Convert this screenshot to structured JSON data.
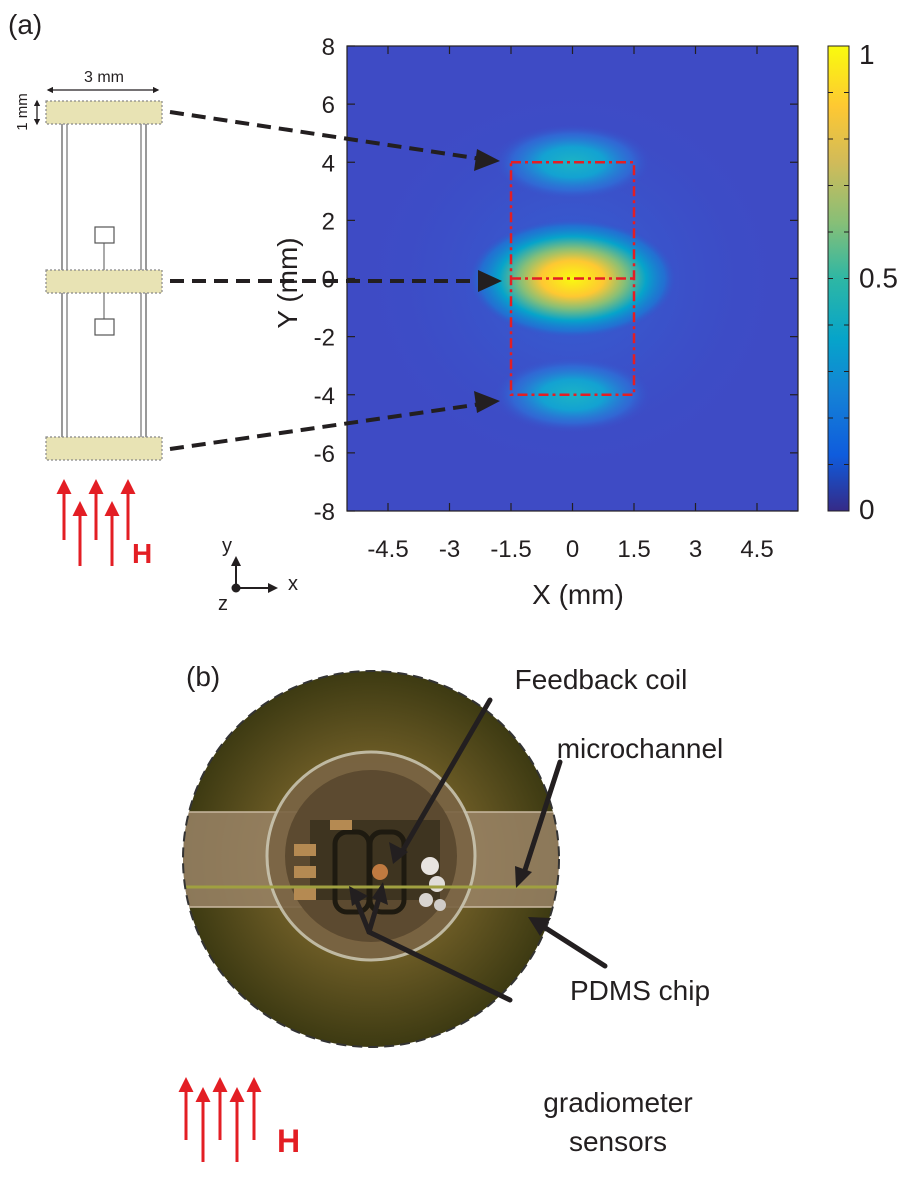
{
  "panel_a": {
    "label": "(a)",
    "sensor_width_label": "3 mm",
    "sensor_height_label": "1 mm",
    "field_label": "H",
    "axes_x": "x",
    "axes_y": "y",
    "axes_z": "z"
  },
  "panel_b": {
    "label": "(b)",
    "feedback_coil": "Feedback coil",
    "microchannel": "microchannel",
    "pdms_chip": "PDMS chip",
    "gradiometer_line1": "gradiometer",
    "gradiometer_line2": "sensors",
    "field_label": "H"
  },
  "colors": {
    "red": "#e31e24",
    "arrow": "#231f20",
    "sensor_fill": "#e8e3b4"
  },
  "chart_data": {
    "type": "heatmap",
    "xlabel": "X (mm)",
    "ylabel": "Y (mm)",
    "xlim": [
      -5.5,
      5.5
    ],
    "ylim": [
      -8,
      8
    ],
    "x_ticks": [
      "-4.5",
      "-3",
      "-1.5",
      "0",
      "1.5",
      "3",
      "4.5"
    ],
    "x_tick_values": [
      -4.5,
      -3,
      -1.5,
      0,
      1.5,
      3,
      4.5
    ],
    "y_ticks": [
      "8",
      "6",
      "4",
      "2",
      "0",
      "-2",
      "-4",
      "-6",
      "-8"
    ],
    "y_tick_values": [
      8,
      6,
      4,
      2,
      0,
      -2,
      -4,
      -6,
      -8
    ],
    "colorbar": {
      "min": 0,
      "max": 1,
      "tick_labels": [
        "1",
        "0.5",
        "0"
      ],
      "tick_values": [
        1,
        0.5,
        0
      ],
      "colormap": "parula"
    },
    "hotspots": [
      {
        "x": 0,
        "y": 0,
        "value": 1.0
      },
      {
        "x": 0,
        "y": 4,
        "value": 0.45
      },
      {
        "x": 0,
        "y": -4,
        "value": 0.45
      }
    ],
    "sensor_region": {
      "x": [
        -1.5,
        1.5
      ],
      "y": [
        -4,
        4
      ],
      "divider_y": 0
    }
  }
}
